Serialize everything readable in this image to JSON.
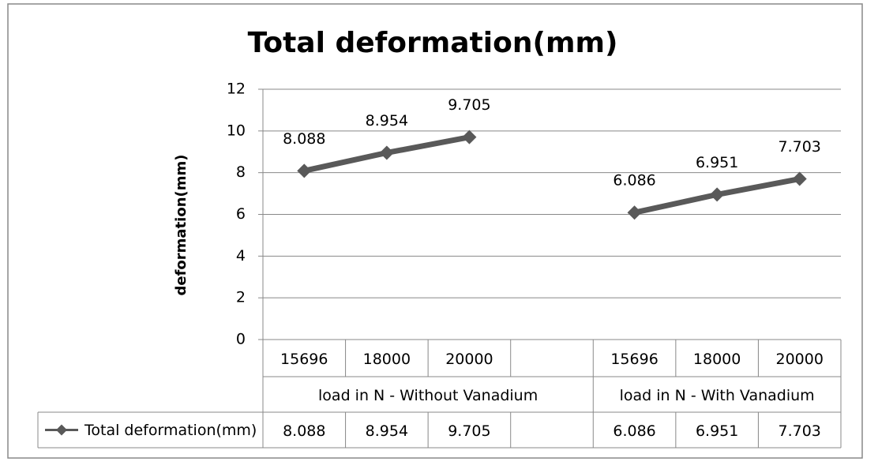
{
  "chart_data": {
    "type": "line",
    "title": "Total deformation(mm)",
    "y_label": "deformation(mm)",
    "categories": [
      "15696",
      "18000",
      "20000",
      null,
      "15696",
      "18000",
      "20000"
    ],
    "category_groups": [
      {
        "name": "load in N - Without Vanadium",
        "size": 4
      },
      {
        "name": "load in N - With Vanadium",
        "size": 3
      }
    ],
    "series": [
      {
        "name": "Total deformation(mm)",
        "color": "#595959",
        "values": [
          8.088,
          8.954,
          9.705,
          null,
          6.086,
          6.951,
          7.703
        ]
      }
    ],
    "ylim": [
      0,
      12
    ],
    "yticks": [
      0,
      2,
      4,
      6,
      8,
      10,
      12
    ],
    "grid": true,
    "data_labels": true,
    "data_table": true
  }
}
